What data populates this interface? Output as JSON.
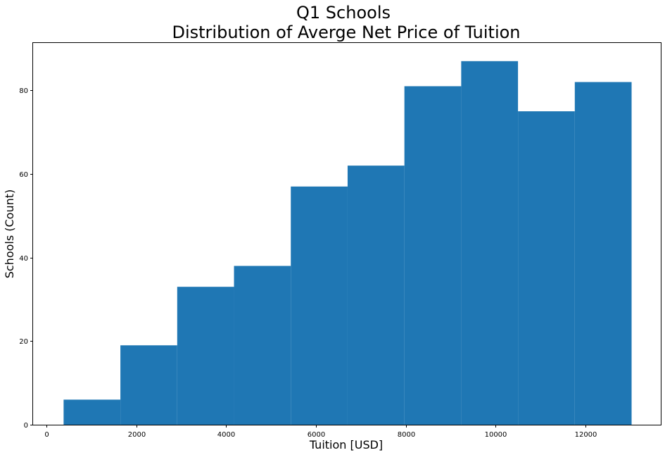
{
  "chart_data": {
    "type": "bar",
    "title": "Q1 Schools",
    "subtitle": "Distribution of Averge Net Price of Tuition",
    "xlabel": "Tuition [USD]",
    "ylabel": "Schools (Count)",
    "bin_edges": [
      380,
      1645,
      2910,
      4175,
      5440,
      6705,
      7970,
      9235,
      10500,
      11765,
      13030
    ],
    "values": [
      6,
      19,
      33,
      38,
      57,
      62,
      81,
      87,
      75,
      82
    ],
    "xlim": [
      -300,
      13680
    ],
    "ylim": [
      0,
      91.35
    ],
    "xticks": [
      0,
      2000,
      4000,
      6000,
      8000,
      10000,
      12000
    ],
    "yticks": [
      0,
      20,
      40,
      60,
      80
    ],
    "bar_color": "#1f77b4",
    "grid": false
  }
}
